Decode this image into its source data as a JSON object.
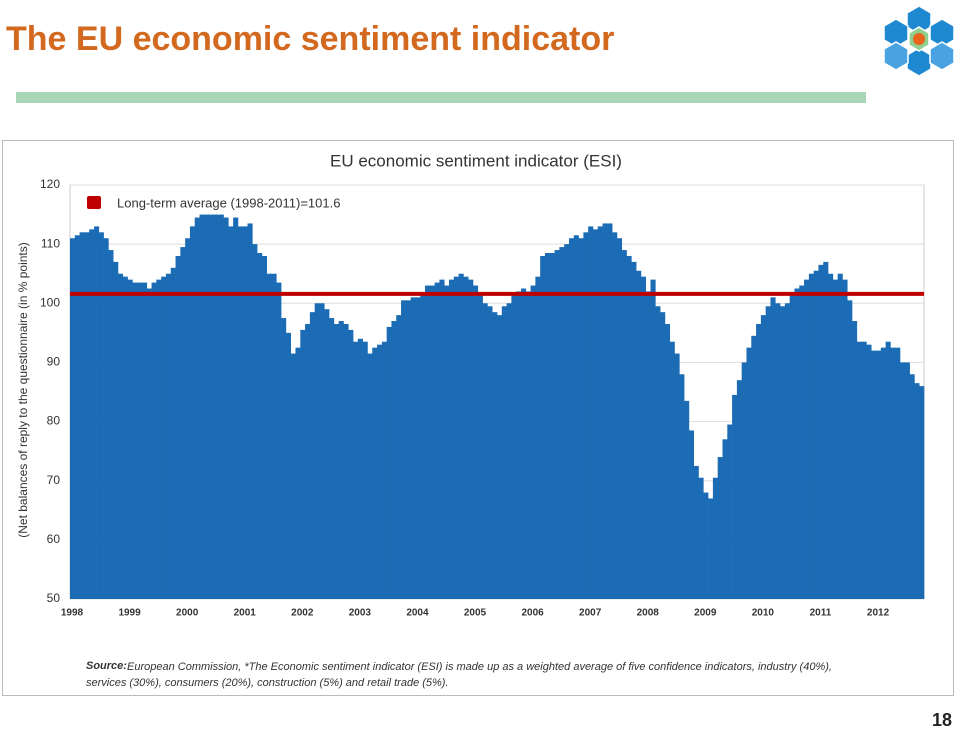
{
  "slide": {
    "title": "The EU economic sentiment indicator",
    "page_number": "18"
  },
  "chart_data": {
    "type": "bar",
    "title": "EU economic sentiment indicator (ESI)",
    "y_label": "(Net balances of reply  to the questionnaire (in % points)",
    "color": "#1b6cb4",
    "categories": [
      "1998",
      null,
      null,
      null,
      null,
      null,
      null,
      null,
      null,
      null,
      null,
      null,
      "1999",
      null,
      null,
      null,
      null,
      null,
      null,
      null,
      null,
      null,
      null,
      null,
      "2000",
      null,
      null,
      null,
      null,
      null,
      null,
      null,
      null,
      null,
      null,
      null,
      "2001",
      null,
      null,
      null,
      null,
      null,
      null,
      null,
      null,
      null,
      null,
      null,
      "2002",
      null,
      null,
      null,
      null,
      null,
      null,
      null,
      null,
      null,
      null,
      null,
      "2003",
      null,
      null,
      null,
      null,
      null,
      null,
      null,
      null,
      null,
      null,
      null,
      "2004",
      null,
      null,
      null,
      null,
      null,
      null,
      null,
      null,
      null,
      null,
      null,
      "2005",
      null,
      null,
      null,
      null,
      null,
      null,
      null,
      null,
      null,
      null,
      null,
      "2006",
      null,
      null,
      null,
      null,
      null,
      null,
      null,
      null,
      null,
      null,
      null,
      "2007",
      null,
      null,
      null,
      null,
      null,
      null,
      null,
      null,
      null,
      null,
      null,
      "2008",
      null,
      null,
      null,
      null,
      null,
      null,
      null,
      null,
      null,
      null,
      null,
      "2009",
      null,
      null,
      null,
      null,
      null,
      null,
      null,
      null,
      null,
      null,
      null,
      "2010",
      null,
      null,
      null,
      null,
      null,
      null,
      null,
      null,
      null,
      null,
      null,
      "2011",
      null,
      null,
      null,
      null,
      null,
      null,
      null,
      null,
      null,
      null,
      null,
      "2012",
      null,
      null,
      null,
      null,
      null,
      null,
      null,
      null,
      null
    ],
    "values": [
      111,
      111.5,
      112,
      112,
      112.5,
      113,
      112,
      111,
      109,
      107,
      105,
      104.5,
      104,
      103.5,
      103.5,
      103.5,
      102.5,
      103.5,
      104,
      104.5,
      105,
      106,
      108,
      109.5,
      111,
      113,
      114.5,
      115,
      115,
      115,
      115,
      115,
      114.5,
      113,
      114.5,
      113,
      113,
      113.5,
      110,
      108.5,
      108,
      105,
      105,
      103.5,
      97.5,
      95,
      91.5,
      92.5,
      95.5,
      96.5,
      98.5,
      100,
      100,
      99,
      97.5,
      96.5,
      97,
      96.5,
      95.5,
      93.5,
      94,
      93.5,
      91.5,
      92.5,
      93,
      93.5,
      96,
      97,
      98,
      100.5,
      100.5,
      101,
      101,
      101.5,
      103,
      103,
      103.5,
      104,
      103,
      104,
      104.5,
      105,
      104.5,
      104,
      103,
      101.5,
      100,
      99.5,
      98.5,
      98,
      99.5,
      100,
      101.5,
      102,
      102.5,
      102,
      103,
      104.5,
      108,
      108.5,
      108.5,
      109,
      109.5,
      110,
      111,
      111.5,
      111,
      112,
      113,
      112.5,
      113,
      113.5,
      113.5,
      112,
      111,
      109,
      108,
      107,
      105.5,
      104.5,
      102,
      104,
      99.5,
      98.5,
      96.5,
      93.5,
      91.5,
      88,
      83.5,
      78.5,
      72.5,
      70.5,
      68,
      67,
      70.5,
      74,
      77,
      79.5,
      84.5,
      87,
      90,
      92.5,
      94.5,
      96.5,
      98,
      99.5,
      101,
      100,
      99.5,
      100,
      101.5,
      102.5,
      103,
      104,
      105,
      105.5,
      106.5,
      107,
      105,
      104,
      105,
      104,
      100.5,
      97,
      93.5,
      93.5,
      93,
      92,
      92,
      92.5,
      93.5,
      92.5,
      92.5,
      90,
      90,
      88,
      86.5,
      86
    ],
    "average": 101.6,
    "average_color": "#c00000",
    "average_label": "Long-term average (1998-2011)=101.6",
    "ylim": [
      50,
      120
    ],
    "yticks": [
      50,
      60,
      70,
      80,
      90,
      100,
      110,
      120
    ],
    "grid": true,
    "source_label": "Source:",
    "source_text": "European Commission, *The Economic sentiment indicator (ESI) is made up as a weighted  average of five confidence indicators,  industry (40%), services (30%), consumers (20%), construction (5%) and retail trade (5%)."
  }
}
